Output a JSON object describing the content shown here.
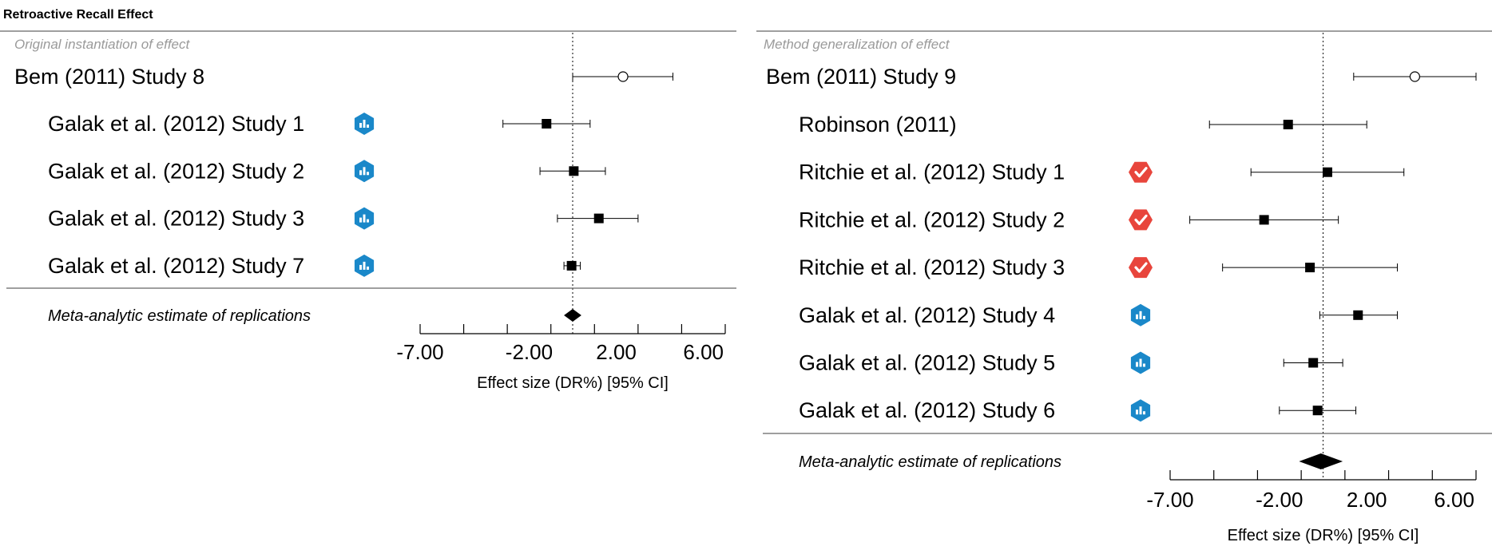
{
  "title": "Retroactive Recall Effect",
  "colors": {
    "osf_badge": "#1a88c9",
    "registered_badge": "#e8453c",
    "marker": "#000000",
    "divider": "#666666",
    "section_label": "#9a9a9a"
  },
  "chart_data": [
    {
      "type": "forest",
      "section_label": "Original instantiation of effect",
      "xlabel": "Effect size (DR%) [95% CI]",
      "xlim": [
        -7,
        7
      ],
      "ticks": [
        -7,
        -5,
        -3,
        -1,
        1,
        3,
        5,
        7
      ],
      "tick_labels": [
        {
          "value": -7,
          "label": "-7.00"
        },
        {
          "value": -2,
          "label": "-2.00"
        },
        {
          "value": 2,
          "label": "2.00"
        },
        {
          "value": 6,
          "label": "6.00"
        }
      ],
      "original": {
        "label": "Bem (2011) Study 8",
        "estimate": 2.31,
        "lower": 0.0,
        "upper": 4.6
      },
      "replications": [
        {
          "label": "Galak et al. (2012) Study 1",
          "estimate": -1.2,
          "lower": -3.2,
          "upper": 0.8,
          "badge": "osf-badge-icon"
        },
        {
          "label": "Galak et al. (2012) Study 2",
          "estimate": 0.05,
          "lower": -1.5,
          "upper": 1.5,
          "badge": "osf-badge-icon"
        },
        {
          "label": "Galak et al. (2012) Study 3",
          "estimate": 1.2,
          "lower": -0.7,
          "upper": 3.0,
          "badge": "osf-badge-icon"
        },
        {
          "label": "Galak et al. (2012) Study 7",
          "estimate": -0.05,
          "lower": -0.4,
          "upper": 0.35,
          "badge": "osf-badge-icon"
        }
      ],
      "meta": {
        "label": "Meta-analytic estimate of replications",
        "estimate": 0.0,
        "lower": -0.4,
        "upper": 0.4
      }
    },
    {
      "type": "forest",
      "section_label": "Method generalization of effect",
      "xlabel": "Effect size (DR%) [95% CI]",
      "xlim": [
        -7,
        7
      ],
      "ticks": [
        -7,
        -5,
        -3,
        -1,
        1,
        3,
        5,
        7
      ],
      "tick_labels": [
        {
          "value": -7,
          "label": "-7.00"
        },
        {
          "value": -2,
          "label": "-2.00"
        },
        {
          "value": 2,
          "label": "2.00"
        },
        {
          "value": 6,
          "label": "6.00"
        }
      ],
      "original": {
        "label": "Bem (2011) Study 9",
        "estimate": 4.2,
        "lower": 1.4,
        "upper": 7.0
      },
      "replications": [
        {
          "label": "Robinson (2011)",
          "estimate": -1.6,
          "lower": -5.2,
          "upper": 2.0,
          "badge": ""
        },
        {
          "label": "Ritchie et al. (2012) Study 1",
          "estimate": 0.2,
          "lower": -3.3,
          "upper": 3.7,
          "badge": "registered-badge-icon"
        },
        {
          "label": "Ritchie et al. (2012) Study 2",
          "estimate": -2.7,
          "lower": -6.1,
          "upper": 0.7,
          "badge": "registered-badge-icon"
        },
        {
          "label": "Ritchie et al. (2012) Study 3",
          "estimate": -0.6,
          "lower": -4.6,
          "upper": 3.4,
          "badge": "registered-badge-icon"
        },
        {
          "label": "Galak et al. (2012) Study 4",
          "estimate": 1.6,
          "lower": -0.15,
          "upper": 3.4,
          "badge": "osf-badge-icon"
        },
        {
          "label": "Galak et al. (2012) Study 5",
          "estimate": -0.45,
          "lower": -1.8,
          "upper": 0.9,
          "badge": "osf-badge-icon"
        },
        {
          "label": "Galak et al. (2012) Study 6",
          "estimate": -0.25,
          "lower": -2.0,
          "upper": 1.5,
          "badge": "osf-badge-icon"
        }
      ],
      "meta": {
        "label": "Meta-analytic estimate of replications",
        "estimate": -0.1,
        "lower": -1.1,
        "upper": 0.9
      }
    }
  ]
}
